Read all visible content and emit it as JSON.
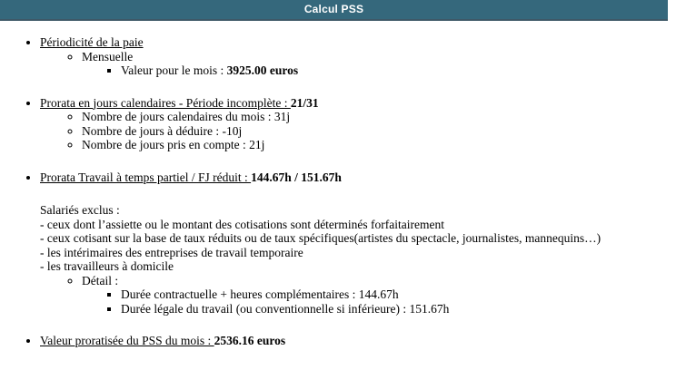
{
  "header": {
    "title": "Calcul PSS"
  },
  "colors": {
    "header_bg": "#35687C",
    "header_border": "#3E5867",
    "text": "#000000",
    "background": "#FFFFFF"
  },
  "sections": {
    "periodicite": {
      "title": "Périodicité de la paie",
      "frequency": "Mensuelle",
      "month_value_label": "Valeur pour le mois : ",
      "month_value": "3925.00 euros"
    },
    "prorata_jours": {
      "title": "Prorata en jours calendaires - Période incomplète : ",
      "value": "21/31",
      "details": [
        "Nombre de jours calendaires du mois : 31j",
        "Nombre de jours à déduire : -10j",
        "Nombre de jours pris en compte : 21j"
      ]
    },
    "prorata_temps_partiel": {
      "title": "Prorata Travail à temps partiel / FJ réduit : ",
      "value": "144.67h / 151.67h",
      "excluded_title": "Salariés exclus :",
      "excluded": [
        "- ceux dont l’assiette ou le montant des cotisations sont déterminés forfaitairement",
        "- ceux cotisant sur la base de taux réduits ou de taux spécifiques(artistes du spectacle, journalistes, mannequins…)",
        "- les intérimaires des entreprises de travail temporaire",
        "- les travailleurs à domicile"
      ],
      "detail_title": "Détail :",
      "detail_items": [
        "Durée contractuelle + heures complémentaires : 144.67h",
        "Durée légale du travail (ou conventionnelle si inférieure) : 151.67h"
      ]
    },
    "valeur_proratisee": {
      "title": "Valeur proratisée du PSS du mois : ",
      "value": "2536.16 euros"
    }
  }
}
